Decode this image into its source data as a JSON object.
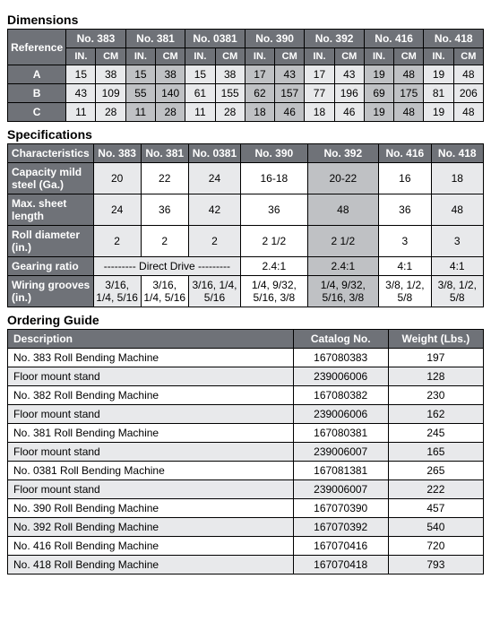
{
  "dimensions": {
    "heading": "Dimensions",
    "row_header": "Reference",
    "models": [
      "No. 383",
      "No. 381",
      "No. 0381",
      "No. 390",
      "No. 392",
      "No. 416",
      "No. 418"
    ],
    "units": [
      "IN.",
      "CM"
    ],
    "rows": [
      {
        "label": "A",
        "vals": [
          "15",
          "38",
          "15",
          "38",
          "15",
          "38",
          "17",
          "43",
          "17",
          "43",
          "19",
          "48",
          "19",
          "48"
        ]
      },
      {
        "label": "B",
        "vals": [
          "43",
          "109",
          "55",
          "140",
          "61",
          "155",
          "62",
          "157",
          "77",
          "196",
          "69",
          "175",
          "81",
          "206"
        ]
      },
      {
        "label": "C",
        "vals": [
          "11",
          "28",
          "11",
          "28",
          "11",
          "28",
          "18",
          "46",
          "18",
          "46",
          "19",
          "48",
          "19",
          "48"
        ]
      }
    ]
  },
  "specifications": {
    "heading": "Specifications",
    "row_header": "Characteristics",
    "models": [
      "No. 383",
      "No. 381",
      "No. 0381",
      "No. 390",
      "No. 392",
      "No. 416",
      "No. 418"
    ],
    "rows": [
      {
        "label": "Capacity mild steel (Ga.)",
        "vals": [
          "20",
          "22",
          "24",
          "16-18",
          "20-22",
          "16",
          "18"
        ]
      },
      {
        "label": "Max. sheet length",
        "vals": [
          "24",
          "36",
          "42",
          "36",
          "48",
          "36",
          "48"
        ]
      },
      {
        "label": "Roll diameter (in.)",
        "vals": [
          "2",
          "2",
          "2",
          "2 1/2",
          "2 1/2",
          "3",
          "3"
        ]
      },
      {
        "label": "Gearing ratio",
        "direct_drive": "--------- Direct Drive ---------",
        "vals_tail": [
          "2.4:1",
          "2.4:1",
          "4:1",
          "4:1"
        ]
      },
      {
        "label": "Wiring grooves (in.)",
        "vals": [
          "3/16, 1/4, 5/16",
          "3/16, 1/4, 5/16",
          "3/16, 1/4, 5/16",
          "1/4, 9/32, 5/16, 3/8",
          "1/4, 9/32, 5/16, 3/8",
          "3/8, 1/2, 5/8",
          "3/8, 1/2, 5/8"
        ]
      }
    ]
  },
  "ordering": {
    "heading": "Ordering Guide",
    "columns": [
      "Description",
      "Catalog No.",
      "Weight (Lbs.)"
    ],
    "rows": [
      [
        "No. 383 Roll Bending Machine",
        "167080383",
        "197"
      ],
      [
        "Floor mount stand",
        "239006006",
        "128"
      ],
      [
        "No. 382 Roll Bending Machine",
        "167080382",
        "230"
      ],
      [
        "Floor mount stand",
        "239006006",
        "162"
      ],
      [
        "No. 381 Roll Bending Machine",
        "167080381",
        "245"
      ],
      [
        "Floor mount stand",
        "239006007",
        "165"
      ],
      [
        "No. 0381 Roll Bending Machine",
        "167081381",
        "265"
      ],
      [
        "Floor mount stand",
        "239006007",
        "222"
      ],
      [
        "No. 390 Roll Bending Machine",
        "167070390",
        "457"
      ],
      [
        "No. 392 Roll Bending Machine",
        "167070392",
        "540"
      ],
      [
        "No. 416 Roll Bending Machine",
        "167070416",
        "720"
      ],
      [
        "No. 418 Roll Bending Machine",
        "167070418",
        "793"
      ]
    ]
  }
}
